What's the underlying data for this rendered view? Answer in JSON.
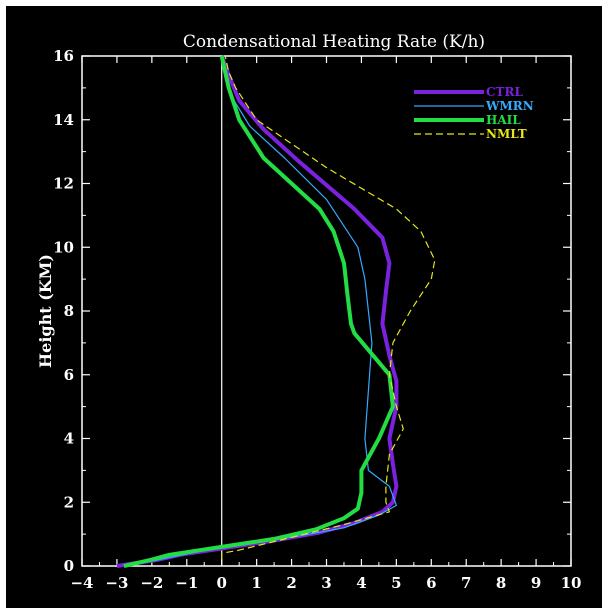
{
  "chart_data": {
    "type": "line",
    "title": "Condensational Heating Rate (K/h)",
    "xlabel": "",
    "ylabel": "Height (KM)",
    "xlim": [
      -4,
      10
    ],
    "ylim": [
      0,
      16
    ],
    "x_ticks": [
      "-4",
      "-3",
      "-2",
      "-1",
      "0",
      "1",
      "2",
      "3",
      "4",
      "5",
      "6",
      "7",
      "8",
      "9",
      "10"
    ],
    "y_ticks": [
      "0",
      "2",
      "4",
      "6",
      "8",
      "10",
      "12",
      "14",
      "16"
    ],
    "zero_line": true,
    "background": "#000000",
    "legend_position": "upper-right",
    "series": [
      {
        "name": "CTRL",
        "color": "#7a22e0",
        "style": "solid-thick",
        "points": [
          [
            -3.0,
            0.0
          ],
          [
            -1.8,
            0.2
          ],
          [
            -1.2,
            0.35
          ],
          [
            0.0,
            0.55
          ],
          [
            1.5,
            0.8
          ],
          [
            2.8,
            1.05
          ],
          [
            3.8,
            1.35
          ],
          [
            4.6,
            1.7
          ],
          [
            4.9,
            2.0
          ],
          [
            5.0,
            2.5
          ],
          [
            4.9,
            3.2
          ],
          [
            4.8,
            4.0
          ],
          [
            5.0,
            5.0
          ],
          [
            5.0,
            5.8
          ],
          [
            4.8,
            6.6
          ],
          [
            4.6,
            7.6
          ],
          [
            4.7,
            8.6
          ],
          [
            4.8,
            9.5
          ],
          [
            4.6,
            10.3
          ],
          [
            3.8,
            11.2
          ],
          [
            2.2,
            12.7
          ],
          [
            1.2,
            13.7
          ],
          [
            0.5,
            14.6
          ],
          [
            0.2,
            15.4
          ],
          [
            0.0,
            16.0
          ]
        ]
      },
      {
        "name": "WMRN",
        "color": "#33aaff",
        "style": "solid-thin",
        "points": [
          [
            -2.8,
            0.0
          ],
          [
            -2.0,
            0.15
          ],
          [
            0.0,
            0.6
          ],
          [
            2.0,
            0.9
          ],
          [
            3.5,
            1.2
          ],
          [
            4.5,
            1.6
          ],
          [
            5.0,
            1.9
          ],
          [
            4.8,
            2.5
          ],
          [
            4.2,
            3.0
          ],
          [
            4.1,
            4.0
          ],
          [
            4.2,
            5.5
          ],
          [
            4.3,
            7.0
          ],
          [
            4.2,
            8.0
          ],
          [
            4.1,
            9.0
          ],
          [
            3.9,
            10.0
          ],
          [
            3.0,
            11.5
          ],
          [
            1.8,
            12.8
          ],
          [
            0.8,
            13.8
          ],
          [
            0.3,
            14.7
          ],
          [
            0.1,
            15.3
          ],
          [
            0.0,
            16.0
          ]
        ]
      },
      {
        "name": "HAIL",
        "color": "#22dd44",
        "style": "solid-thick",
        "points": [
          [
            -2.8,
            0.0
          ],
          [
            -2.0,
            0.2
          ],
          [
            -1.5,
            0.35
          ],
          [
            0.0,
            0.6
          ],
          [
            1.5,
            0.85
          ],
          [
            2.7,
            1.15
          ],
          [
            3.5,
            1.5
          ],
          [
            3.9,
            1.8
          ],
          [
            4.0,
            2.3
          ],
          [
            4.0,
            3.0
          ],
          [
            4.5,
            4.0
          ],
          [
            4.9,
            5.0
          ],
          [
            4.8,
            6.0
          ],
          [
            3.8,
            7.3
          ],
          [
            3.7,
            7.6
          ],
          [
            3.6,
            8.5
          ],
          [
            3.5,
            9.5
          ],
          [
            3.2,
            10.5
          ],
          [
            2.8,
            11.2
          ],
          [
            1.2,
            12.8
          ],
          [
            0.5,
            14.0
          ],
          [
            0.2,
            15.0
          ],
          [
            0.0,
            16.0
          ]
        ]
      },
      {
        "name": "NMLT",
        "color": "#e6e61a",
        "style": "dashed",
        "points": [
          [
            0.0,
            0.2
          ],
          [
            0.0,
            0.4
          ],
          [
            0.5,
            0.5
          ],
          [
            2.0,
            0.9
          ],
          [
            3.5,
            1.3
          ],
          [
            4.8,
            1.7
          ],
          [
            4.7,
            2.0
          ],
          [
            4.7,
            2.5
          ],
          [
            4.8,
            3.5
          ],
          [
            5.2,
            4.3
          ],
          [
            5.0,
            5.0
          ],
          [
            4.8,
            6.0
          ],
          [
            4.9,
            7.0
          ],
          [
            5.4,
            8.0
          ],
          [
            6.0,
            9.0
          ],
          [
            6.1,
            9.6
          ],
          [
            5.7,
            10.5
          ],
          [
            5.0,
            11.2
          ],
          [
            3.0,
            12.5
          ],
          [
            1.0,
            14.0
          ],
          [
            0.4,
            15.0
          ],
          [
            0.2,
            15.5
          ],
          [
            0.1,
            16.0
          ]
        ]
      }
    ]
  }
}
